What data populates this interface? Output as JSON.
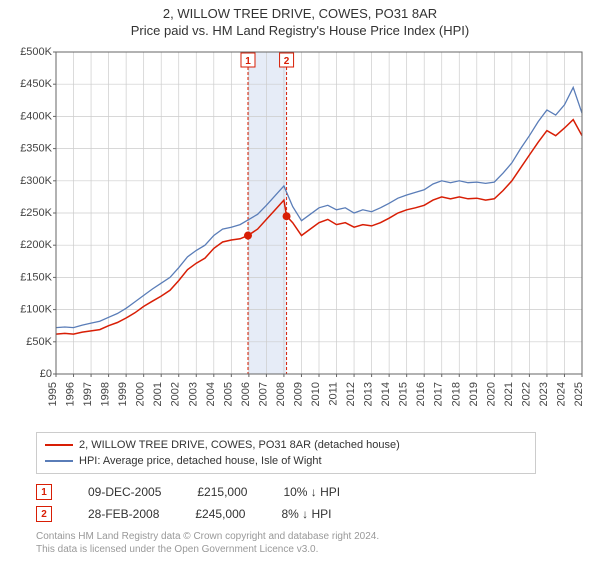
{
  "titles": {
    "main": "2, WILLOW TREE DRIVE, COWES, PO31 8AR",
    "sub": "Price paid vs. HM Land Registry's House Price Index (HPI)"
  },
  "chart": {
    "type": "line",
    "background_color": "#ffffff",
    "grid_color": "#cccccc",
    "axis_font_size": 11,
    "axis_text_color": "#444444",
    "y_axis": {
      "min": 0,
      "max": 500000,
      "tick_step": 50000,
      "ticks": [
        "£0",
        "£50K",
        "£100K",
        "£150K",
        "£200K",
        "£250K",
        "£300K",
        "£350K",
        "£400K",
        "£450K",
        "£500K"
      ]
    },
    "x_axis": {
      "min": 1995,
      "max": 2025,
      "ticks": [
        1995,
        1996,
        1997,
        1998,
        1999,
        2000,
        2001,
        2002,
        2003,
        2004,
        2005,
        2006,
        2007,
        2008,
        2009,
        2010,
        2011,
        2012,
        2013,
        2014,
        2015,
        2016,
        2017,
        2018,
        2019,
        2020,
        2021,
        2022,
        2023,
        2024,
        2025
      ]
    },
    "shaded_region": {
      "x_start": 2005.95,
      "x_end": 2008.15,
      "fill": "#e6ecf7"
    },
    "marker_divider_color": "#d81e05",
    "series": [
      {
        "id": "property",
        "label": "2, WILLOW TREE DRIVE, COWES, PO31 8AR (detached house)",
        "color": "#d81e05",
        "line_width": 1.5,
        "points": [
          [
            1995,
            62000
          ],
          [
            1995.5,
            63000
          ],
          [
            1996,
            62000
          ],
          [
            1996.5,
            65000
          ],
          [
            1997,
            67000
          ],
          [
            1997.5,
            69000
          ],
          [
            1998,
            75000
          ],
          [
            1998.5,
            80000
          ],
          [
            1999,
            87000
          ],
          [
            1999.5,
            95000
          ],
          [
            2000,
            105000
          ],
          [
            2000.5,
            113000
          ],
          [
            2001,
            121000
          ],
          [
            2001.5,
            130000
          ],
          [
            2002,
            145000
          ],
          [
            2002.5,
            162000
          ],
          [
            2003,
            172000
          ],
          [
            2003.5,
            180000
          ],
          [
            2004,
            195000
          ],
          [
            2004.5,
            205000
          ],
          [
            2005,
            208000
          ],
          [
            2005.5,
            210000
          ],
          [
            2005.95,
            215000
          ],
          [
            2006.5,
            225000
          ],
          [
            2007,
            240000
          ],
          [
            2007.5,
            255000
          ],
          [
            2008,
            270000
          ],
          [
            2008.15,
            245000
          ],
          [
            2008.5,
            235000
          ],
          [
            2009,
            215000
          ],
          [
            2009.5,
            225000
          ],
          [
            2010,
            235000
          ],
          [
            2010.5,
            240000
          ],
          [
            2011,
            232000
          ],
          [
            2011.5,
            235000
          ],
          [
            2012,
            228000
          ],
          [
            2012.5,
            232000
          ],
          [
            2013,
            230000
          ],
          [
            2013.5,
            235000
          ],
          [
            2014,
            242000
          ],
          [
            2014.5,
            250000
          ],
          [
            2015,
            255000
          ],
          [
            2015.5,
            258000
          ],
          [
            2016,
            262000
          ],
          [
            2016.5,
            270000
          ],
          [
            2017,
            275000
          ],
          [
            2017.5,
            272000
          ],
          [
            2018,
            275000
          ],
          [
            2018.5,
            272000
          ],
          [
            2019,
            273000
          ],
          [
            2019.5,
            270000
          ],
          [
            2020,
            272000
          ],
          [
            2020.5,
            285000
          ],
          [
            2021,
            300000
          ],
          [
            2021.5,
            320000
          ],
          [
            2022,
            340000
          ],
          [
            2022.5,
            360000
          ],
          [
            2023,
            378000
          ],
          [
            2023.5,
            370000
          ],
          [
            2024,
            382000
          ],
          [
            2024.5,
            395000
          ],
          [
            2025,
            370000
          ]
        ]
      },
      {
        "id": "hpi",
        "label": "HPI: Average price, detached house, Isle of Wight",
        "color": "#5a7db8",
        "line_width": 1.3,
        "points": [
          [
            1995,
            72000
          ],
          [
            1995.5,
            73000
          ],
          [
            1996,
            72000
          ],
          [
            1996.5,
            76000
          ],
          [
            1997,
            79000
          ],
          [
            1997.5,
            82000
          ],
          [
            1998,
            88000
          ],
          [
            1998.5,
            94000
          ],
          [
            1999,
            102000
          ],
          [
            1999.5,
            112000
          ],
          [
            2000,
            122000
          ],
          [
            2000.5,
            132000
          ],
          [
            2001,
            141000
          ],
          [
            2001.5,
            150000
          ],
          [
            2002,
            165000
          ],
          [
            2002.5,
            182000
          ],
          [
            2003,
            192000
          ],
          [
            2003.5,
            200000
          ],
          [
            2004,
            215000
          ],
          [
            2004.5,
            225000
          ],
          [
            2005,
            228000
          ],
          [
            2005.5,
            232000
          ],
          [
            2006,
            240000
          ],
          [
            2006.5,
            248000
          ],
          [
            2007,
            262000
          ],
          [
            2007.5,
            277000
          ],
          [
            2008,
            292000
          ],
          [
            2008.5,
            260000
          ],
          [
            2009,
            238000
          ],
          [
            2009.5,
            248000
          ],
          [
            2010,
            258000
          ],
          [
            2010.5,
            262000
          ],
          [
            2011,
            255000
          ],
          [
            2011.5,
            258000
          ],
          [
            2012,
            250000
          ],
          [
            2012.5,
            255000
          ],
          [
            2013,
            252000
          ],
          [
            2013.5,
            258000
          ],
          [
            2014,
            265000
          ],
          [
            2014.5,
            273000
          ],
          [
            2015,
            278000
          ],
          [
            2015.5,
            282000
          ],
          [
            2016,
            286000
          ],
          [
            2016.5,
            295000
          ],
          [
            2017,
            300000
          ],
          [
            2017.5,
            297000
          ],
          [
            2018,
            300000
          ],
          [
            2018.5,
            297000
          ],
          [
            2019,
            298000
          ],
          [
            2019.5,
            296000
          ],
          [
            2020,
            298000
          ],
          [
            2020.5,
            312000
          ],
          [
            2021,
            328000
          ],
          [
            2021.5,
            350000
          ],
          [
            2022,
            370000
          ],
          [
            2022.5,
            392000
          ],
          [
            2023,
            410000
          ],
          [
            2023.5,
            402000
          ],
          [
            2024,
            418000
          ],
          [
            2024.5,
            445000
          ],
          [
            2025,
            405000
          ]
        ]
      }
    ],
    "sale_markers": [
      {
        "n": "1",
        "x": 2005.95,
        "y": 215000
      },
      {
        "n": "2",
        "x": 2008.15,
        "y": 245000
      }
    ]
  },
  "legend": {
    "items": [
      {
        "color": "#d81e05",
        "label": "2, WILLOW TREE DRIVE, COWES, PO31 8AR (detached house)"
      },
      {
        "color": "#5a7db8",
        "label": "HPI: Average price, detached house, Isle of Wight"
      }
    ]
  },
  "sales": [
    {
      "n": "1",
      "date": "09-DEC-2005",
      "price": "£215,000",
      "delta": "10% ↓ HPI"
    },
    {
      "n": "2",
      "date": "28-FEB-2008",
      "price": "£245,000",
      "delta": "8% ↓ HPI"
    }
  ],
  "footer": {
    "line1": "Contains HM Land Registry data © Crown copyright and database right 2024.",
    "line2": "This data is licensed under the Open Government Licence v3.0."
  }
}
